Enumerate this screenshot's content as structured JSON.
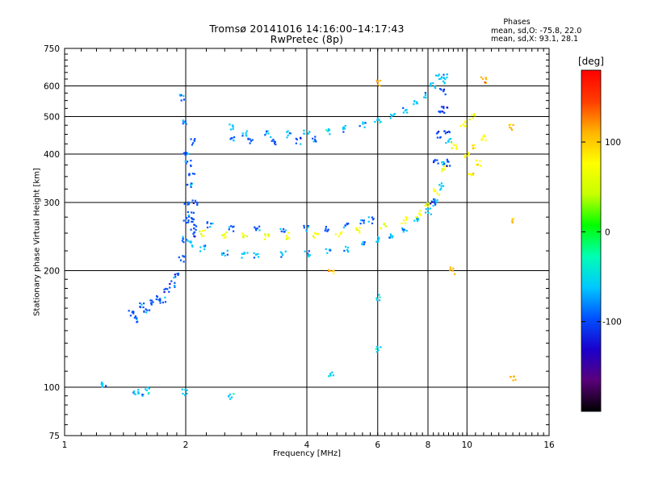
{
  "header": {
    "title": "Tromsø 20141016 14:16:00–14:17:43",
    "subtitle": "RwPretec (8p)"
  },
  "legend": {
    "heading": "Phases",
    "line_o": "mean, sd,O: -75.8, 22.0",
    "line_x": "mean, sd,X:  93.1, 28.1"
  },
  "colorbar": {
    "unit": "[deg]",
    "range": [
      -200,
      180
    ],
    "ticks": [
      "-100",
      "0",
      "100"
    ],
    "colors": [
      "#000000",
      "#5a007a",
      "#1a00cc",
      "#0050ff",
      "#00c8ff",
      "#00ffb4",
      "#00ff00",
      "#c8ff00",
      "#ffff00",
      "#ffb400",
      "#ff3c00",
      "#ff0000"
    ]
  },
  "chart_data": {
    "type": "scatter",
    "title": "Tromsø 20141016 14:16:00–14:17:43",
    "subtitle": "RwPretec (8p)",
    "xlabel": "Frequency [MHz]",
    "ylabel": "Stationary phase Virtual Height [km]",
    "x_scale": "log",
    "y_scale": "log",
    "xlim": [
      1,
      16
    ],
    "ylim": [
      75,
      750
    ],
    "x_ticks": [
      1,
      2,
      4,
      6,
      8,
      10,
      16
    ],
    "y_ticks": [
      75,
      100,
      200,
      300,
      400,
      500,
      600,
      750
    ],
    "grid": true,
    "color_by": "phase [deg]",
    "clusters": [
      {
        "points": [
          [
            1.47,
            155
          ],
          [
            1.5,
            150
          ],
          [
            1.55,
            162
          ],
          [
            1.6,
            158
          ],
          [
            1.65,
            165
          ],
          [
            1.7,
            170
          ],
          [
            1.75,
            168
          ],
          [
            1.8,
            178
          ],
          [
            1.85,
            185
          ],
          [
            1.9,
            195
          ],
          [
            1.95,
            215
          ],
          [
            1.98,
            240
          ],
          [
            2.0,
            270
          ],
          [
            2.02,
            300
          ],
          [
            2.05,
            330
          ],
          [
            2.07,
            360
          ],
          [
            2.1,
            300
          ],
          [
            2.12,
            250
          ],
          [
            2.08,
            430
          ],
          [
            1.97,
            480
          ],
          [
            1.96,
            560
          ],
          [
            2.0,
            400
          ],
          [
            2.03,
            380
          ],
          [
            2.06,
            280
          ],
          [
            2.09,
            260
          ]
        ],
        "phase": -90
      },
      {
        "points": [
          [
            2.05,
            235
          ],
          [
            2.2,
            228
          ],
          [
            2.5,
            222
          ],
          [
            2.8,
            220
          ],
          [
            3.0,
            220
          ],
          [
            3.5,
            221
          ],
          [
            4.0,
            222
          ],
          [
            4.5,
            224
          ],
          [
            5.0,
            228
          ],
          [
            5.5,
            234
          ],
          [
            6.0,
            240
          ],
          [
            6.5,
            247
          ],
          [
            7.0,
            256
          ],
          [
            7.5,
            268
          ],
          [
            8.0,
            285
          ],
          [
            8.3,
            300
          ],
          [
            8.6,
            330
          ],
          [
            8.8,
            380
          ],
          [
            9.0,
            430
          ]
        ],
        "phase": -75
      },
      {
        "points": [
          [
            2.1,
            270
          ],
          [
            2.3,
            262
          ],
          [
            2.6,
            258
          ],
          [
            3.0,
            255
          ],
          [
            3.5,
            256
          ],
          [
            4.0,
            257
          ],
          [
            4.5,
            258
          ],
          [
            5.0,
            261
          ],
          [
            5.5,
            265
          ],
          [
            5.8,
            270
          ]
        ],
        "phase": -80
      },
      {
        "points": [
          [
            2.2,
            250
          ],
          [
            2.5,
            248
          ],
          [
            2.8,
            245
          ],
          [
            3.2,
            244
          ],
          [
            3.6,
            246
          ],
          [
            4.2,
            247
          ],
          [
            4.8,
            250
          ],
          [
            5.4,
            255
          ],
          [
            6.2,
            262
          ],
          [
            7.0,
            270
          ],
          [
            7.6,
            280
          ],
          [
            8.0,
            295
          ],
          [
            8.4,
            320
          ],
          [
            8.8,
            365
          ],
          [
            9.3,
            420
          ],
          [
            9.8,
            480
          ],
          [
            10.3,
            500
          ]
        ],
        "phase": 60
      },
      {
        "points": [
          [
            2.6,
            470
          ],
          [
            2.8,
            455
          ],
          [
            3.2,
            450
          ],
          [
            3.6,
            450
          ],
          [
            4.0,
            452
          ],
          [
            4.5,
            458
          ],
          [
            5.0,
            465
          ],
          [
            5.5,
            475
          ],
          [
            6.0,
            490
          ],
          [
            6.5,
            505
          ],
          [
            7.0,
            520
          ],
          [
            7.5,
            540
          ],
          [
            7.9,
            570
          ],
          [
            8.2,
            600
          ],
          [
            8.5,
            630
          ],
          [
            8.7,
            620
          ],
          [
            8.9,
            640
          ]
        ],
        "phase": -70
      },
      {
        "points": [
          [
            2.6,
            440
          ],
          [
            2.9,
            432
          ],
          [
            3.3,
            430
          ],
          [
            3.8,
            433
          ],
          [
            4.2,
            440
          ]
        ],
        "phase": -95
      },
      {
        "points": [
          [
            8.2,
            300
          ],
          [
            8.4,
            380
          ],
          [
            8.5,
            450
          ],
          [
            8.6,
            520
          ],
          [
            8.7,
            580
          ],
          [
            8.8,
            520
          ],
          [
            8.9,
            450
          ],
          [
            9.0,
            380
          ]
        ],
        "phase": -110
      },
      {
        "points": [
          [
            10.0,
            400
          ],
          [
            10.5,
            420
          ],
          [
            11.0,
            440
          ],
          [
            10.7,
            380
          ],
          [
            10.2,
            350
          ]
        ],
        "phase": 90
      },
      {
        "points": [
          [
            1.25,
            102
          ],
          [
            1.5,
            97
          ],
          [
            1.55,
            96
          ],
          [
            1.6,
            98
          ],
          [
            1.98,
            97
          ],
          [
            2.6,
            95
          ],
          [
            4.6,
            108
          ],
          [
            6.0,
            125
          ],
          [
            6.0,
            170
          ]
        ],
        "phase": -60
      },
      {
        "points": [
          [
            12.9,
            270
          ],
          [
            13.0,
            105
          ],
          [
            12.9,
            470
          ],
          [
            11.0,
            620
          ],
          [
            6.0,
            610
          ],
          [
            4.6,
            200
          ],
          [
            9.2,
            200
          ]
        ],
        "phase": 110
      }
    ]
  }
}
